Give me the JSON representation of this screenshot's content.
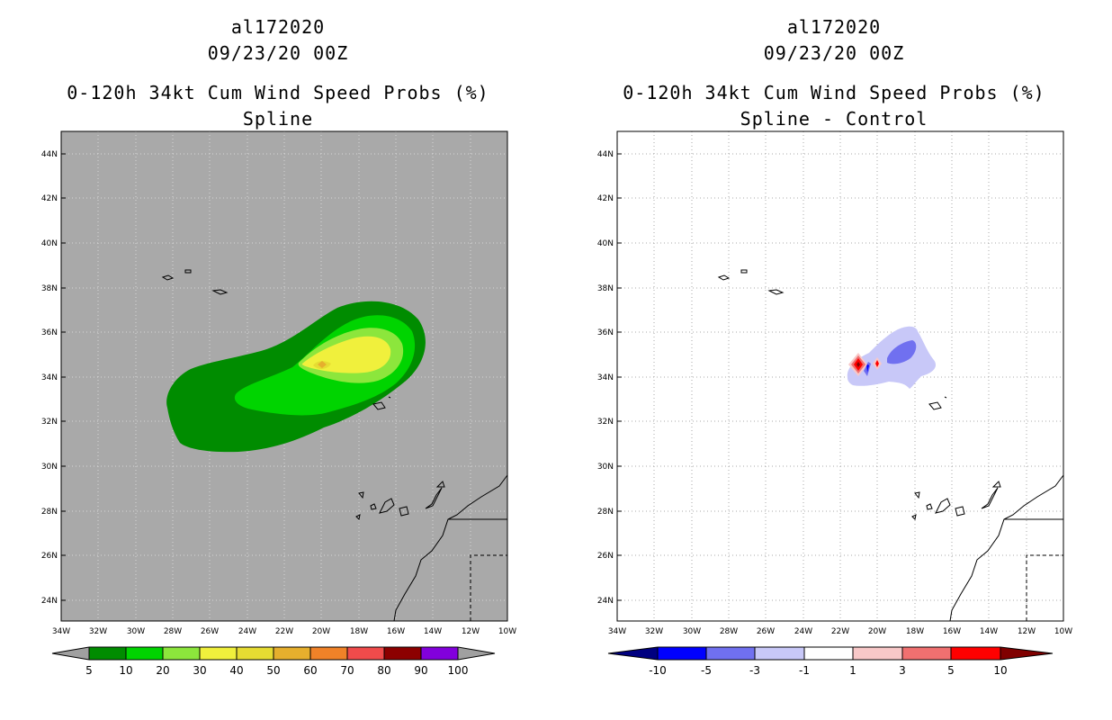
{
  "panels": [
    {
      "storm": "al172020",
      "datetime": "09/23/20 00Z",
      "product": "0-120h 34kt Cum Wind Speed Probs (%)",
      "subtitle": "Spline",
      "background": "#a9a9a9",
      "colorbar": {
        "labels": [
          "5",
          "10",
          "20",
          "30",
          "40",
          "50",
          "60",
          "70",
          "80",
          "90",
          "100"
        ],
        "colors": [
          "#008c00",
          "#00d400",
          "#8ce63c",
          "#f0f03c",
          "#e6dc32",
          "#e6af2d",
          "#f08228",
          "#f04b4b",
          "#8c0000",
          "#8200dc"
        ],
        "end_color": "#a0a0a0"
      }
    },
    {
      "storm": "al172020",
      "datetime": "09/23/20 00Z",
      "product": "0-120h 34kt Cum Wind Speed Probs (%)",
      "subtitle": "Spline - Control",
      "background": "#ffffff",
      "colorbar": {
        "labels": [
          "-10",
          "-5",
          "-3",
          "-1",
          "1",
          "3",
          "5",
          "10"
        ],
        "colors": [
          "#0000ff",
          "#7070f0",
          "#c8c8f8",
          "#ffffff",
          "#f8c8c8",
          "#f07070",
          "#ff0000"
        ],
        "low_end_color": "#000080",
        "high_end_color": "#800000"
      }
    }
  ],
  "axes": {
    "lat_labels": [
      "44N",
      "42N",
      "40N",
      "38N",
      "36N",
      "34N",
      "32N",
      "30N",
      "28N",
      "26N",
      "24N"
    ],
    "lon_labels": [
      "34W",
      "32W",
      "30W",
      "28W",
      "26W",
      "24W",
      "22W",
      "20W",
      "18W",
      "16W",
      "14W",
      "12W",
      "10W"
    ]
  }
}
